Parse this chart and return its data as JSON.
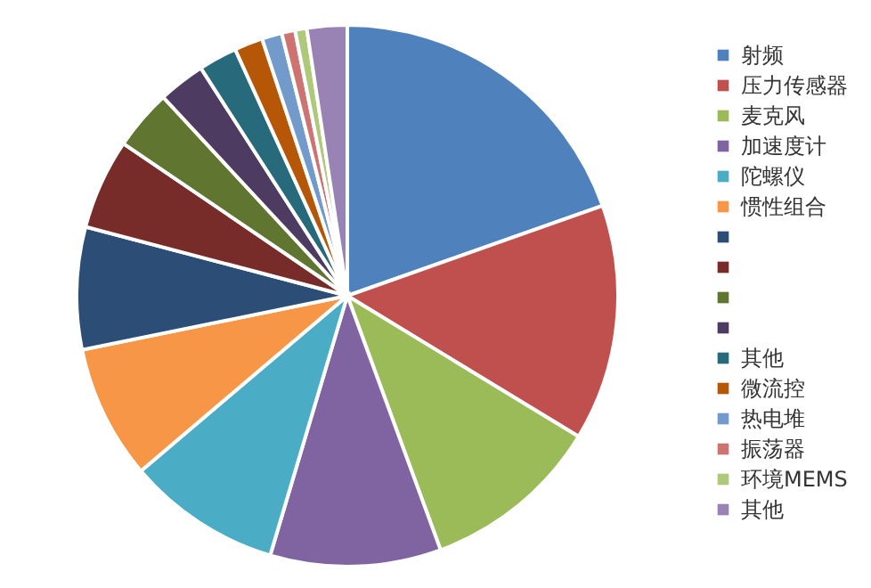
{
  "chart_data": {
    "type": "pie",
    "categories": [
      "射频",
      "压力传感器",
      "麦克风",
      "加速度计",
      "陀螺仪",
      "惯性组合",
      null,
      null,
      null,
      null,
      "其他",
      "微流控",
      "热电堆",
      "振荡器",
      "环境MEMS",
      "其他"
    ],
    "values": [
      19.6,
      14.1,
      10.7,
      10.2,
      9.2,
      8.0,
      7.3,
      5.4,
      3.6,
      2.8,
      2.3,
      1.7,
      1.2,
      0.8,
      0.7,
      2.4
    ],
    "colors": [
      "#4f81bd",
      "#c0504d",
      "#9bbb59",
      "#8064a2",
      "#4bacc6",
      "#f79646",
      "#2c4d75",
      "#772c2a",
      "#5f7530",
      "#4d3b62",
      "#276a7c",
      "#b65708",
      "#729aca",
      "#cd7371",
      "#afc97a",
      "#9983b5"
    ],
    "legend": "right"
  }
}
